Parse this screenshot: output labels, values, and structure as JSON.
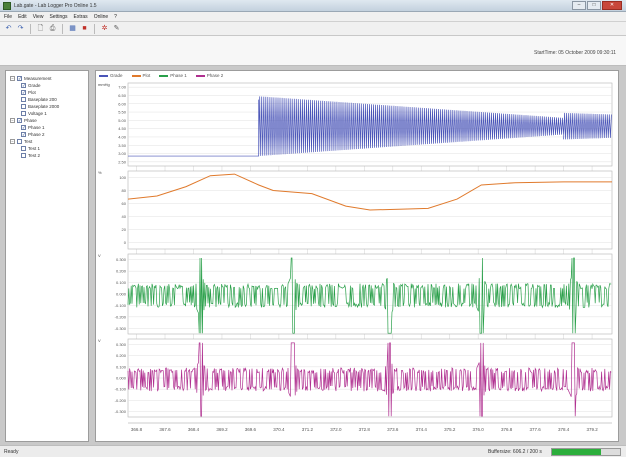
{
  "app": {
    "title": "Lab.gate - Lab Logger Pro Online 1.5",
    "window_buttons": [
      "–",
      "□",
      "✕"
    ]
  },
  "menu": [
    "File",
    "Edit",
    "View",
    "Settings",
    "Extras",
    "Online",
    "?"
  ],
  "toolbar": {
    "icons": [
      "undo-icon",
      "redo-icon",
      "new-file-icon",
      "print-icon",
      "layout-icon",
      "record-icon",
      "settings-icon",
      "pin-icon"
    ],
    "glyphs": [
      "↶",
      "↷",
      "🗋",
      "⎙",
      "▦",
      "■",
      "✲",
      "✎"
    ],
    "colors": [
      "#3a5fae",
      "#3a5fae",
      "#555555",
      "#555555",
      "#3a5fae",
      "#c03028",
      "#c03028",
      "#555555"
    ]
  },
  "info": {
    "start_label": "StartTime: 05 October 2009 09:30:11"
  },
  "tree": [
    {
      "label": "Measurement",
      "level": 0,
      "checked": true,
      "expander": "−"
    },
    {
      "label": "Grade",
      "level": 1,
      "checked": true
    },
    {
      "label": "Plot",
      "level": 1,
      "checked": true
    },
    {
      "label": "Baseplate 200",
      "level": 1,
      "checked": false
    },
    {
      "label": "Baseplate 2000",
      "level": 1,
      "checked": false
    },
    {
      "label": "Voltage 1",
      "level": 1,
      "checked": false
    },
    {
      "label": "Phase",
      "level": 0,
      "checked": true,
      "expander": "−"
    },
    {
      "label": "Phase 1",
      "level": 1,
      "checked": true
    },
    {
      "label": "Phase 2",
      "level": 1,
      "checked": true
    },
    {
      "label": "Test",
      "level": 0,
      "checked": false,
      "expander": "−"
    },
    {
      "label": "Test 1",
      "level": 1,
      "checked": false
    },
    {
      "label": "Test 2",
      "level": 1,
      "checked": false
    }
  ],
  "legend": [
    {
      "label": "Grade",
      "color": "#4a55b8"
    },
    {
      "label": "Plot",
      "color": "#e07a2c"
    },
    {
      "label": "Phase 1",
      "color": "#2aa04a"
    },
    {
      "label": "Phase 2",
      "color": "#b03090"
    }
  ],
  "chart_data": {
    "type": "line",
    "x_ticks": [
      "366.8",
      "367.6",
      "368.4",
      "369.2",
      "369.6",
      "370.4",
      "371.2",
      "372.0",
      "372.8",
      "373.6",
      "374.4",
      "375.2",
      "376.0",
      "376.8",
      "377.6",
      "378.4",
      "379.2"
    ],
    "panels": [
      {
        "name": "Grade",
        "unit": "mmHg",
        "y_ticks": [
          "7.00",
          "6.50",
          "6.00",
          "5.50",
          "5.00",
          "4.50",
          "4.00",
          "3.50",
          "3.00",
          "2.50"
        ],
        "color": "#4a55b8",
        "segments": [
          {
            "x0": 0,
            "x1": 0.27,
            "kind": "flat",
            "level": 0.88
          },
          {
            "x0": 0.27,
            "x1": 0.9,
            "kind": "oscillation",
            "center": 0.52,
            "amp_start": 0.36,
            "amp_end": 0.1,
            "period": 0.0042
          },
          {
            "x0": 0.9,
            "x1": 1.0,
            "kind": "oscillation",
            "center": 0.52,
            "amp_start": 0.16,
            "amp_end": 0.14,
            "period": 0.0042
          }
        ]
      },
      {
        "name": "Plot",
        "unit": "%",
        "y_ticks": [
          "100",
          "80",
          "60",
          "40",
          "20",
          "0"
        ],
        "color": "#e07a2c",
        "points": [
          [
            0,
            0.36
          ],
          [
            0.06,
            0.32
          ],
          [
            0.12,
            0.2
          ],
          [
            0.17,
            0.06
          ],
          [
            0.22,
            0.04
          ],
          [
            0.27,
            0.18
          ],
          [
            0.3,
            0.25
          ],
          [
            0.38,
            0.29
          ],
          [
            0.45,
            0.45
          ],
          [
            0.5,
            0.5
          ],
          [
            0.56,
            0.49
          ],
          [
            0.62,
            0.48
          ],
          [
            0.68,
            0.36
          ],
          [
            0.73,
            0.18
          ],
          [
            0.8,
            0.15
          ],
          [
            0.9,
            0.14
          ],
          [
            1.0,
            0.14
          ]
        ]
      },
      {
        "name": "Phase 1",
        "unit": "V",
        "y_ticks": [
          "0.300",
          "0.200",
          "0.100",
          "0.000",
          "-0.100",
          "-0.200",
          "-0.300"
        ],
        "color": "#2aa04a",
        "spikes": [
          0.15,
          0.34,
          0.54,
          0.73,
          0.92
        ],
        "noise": 0.15
      },
      {
        "name": "Phase 2",
        "unit": "V",
        "y_ticks": [
          "0.300",
          "0.200",
          "0.100",
          "0.000",
          "-0.100",
          "-0.200",
          "-0.300"
        ],
        "color": "#b03090",
        "spikes": [
          0.15,
          0.34,
          0.54,
          0.73,
          0.92
        ],
        "noise": 0.15
      }
    ]
  },
  "status": {
    "ready": "Ready",
    "buffer_label": "Buffersize: 606.2 / 200 s",
    "buffer_fraction": 0.72
  }
}
